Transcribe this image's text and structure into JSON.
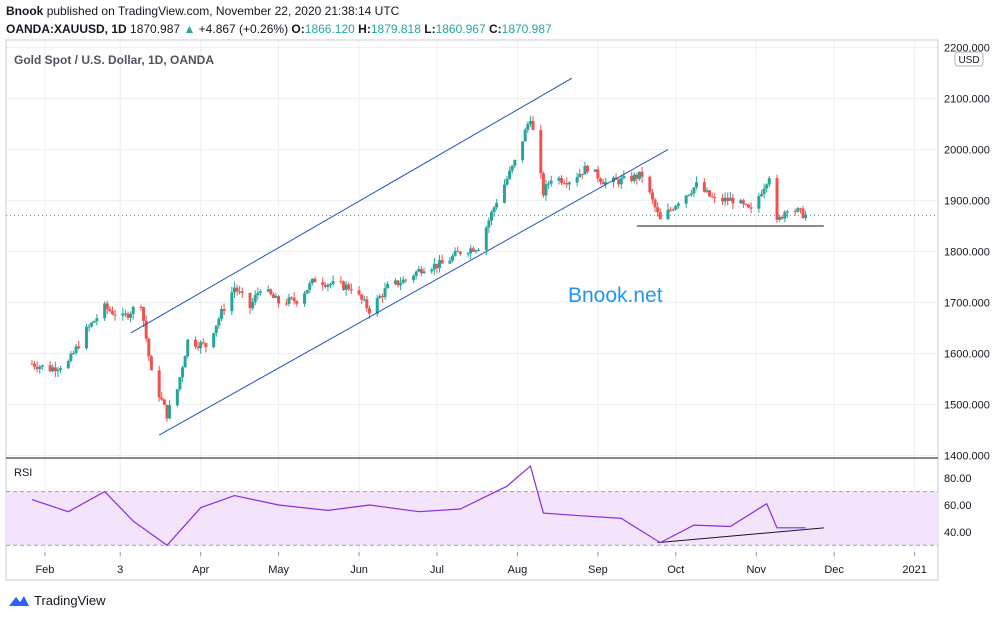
{
  "header": {
    "author": "Bnook",
    "published_text": "published on TradingView.com, November 22, 2020 21:38:14 UTC",
    "symbol": "OANDA:XAUUSD, 1D",
    "last": "1870.987",
    "change_arrow": "▲",
    "change": "+4.867 (+0.26%)",
    "o_label": "O:",
    "o_value": "1866.120",
    "h_label": "H:",
    "h_value": "1879.818",
    "l_label": "L:",
    "l_value": "1860.967",
    "c_label": "C:",
    "c_value": "1870.987"
  },
  "colors": {
    "up": "#26a69a",
    "down": "#ef5350",
    "trend": "#1e53c8",
    "rsi_line": "#8a2be2",
    "rsi_band": "#f3e3fb",
    "grid": "#eceff3",
    "watermark": "#2196f3"
  },
  "watermark": "Bnook.net",
  "footer": {
    "brand": "TradingView",
    "icon": "tradingview-logo-icon"
  },
  "chart_data": [
    {
      "type": "candlestick",
      "title": "Gold Spot / U.S. Dollar, 1D, OANDA",
      "currency_badge": "USD",
      "y_ticks": [
        "1400.000",
        "1500.000",
        "1600.000",
        "1700.000",
        "1800.000",
        "1900.000",
        "2000.000",
        "2100.000",
        "2200.000"
      ],
      "ylim": [
        1395,
        2215
      ],
      "x_ticks": [
        "Feb",
        "3",
        "Apr",
        "May",
        "Jun",
        "Jul",
        "Aug",
        "Sep",
        "Oct",
        "Nov",
        "Dec",
        "2021"
      ],
      "date_range": [
        "2020-01-27",
        "2020-11-20"
      ],
      "close_series": [
        [
          "2020-01-27",
          1580
        ],
        [
          "2020-02-03",
          1570
        ],
        [
          "2020-02-10",
          1582
        ],
        [
          "2020-02-17",
          1645
        ],
        [
          "2020-02-24",
          1690
        ],
        [
          "2020-03-02",
          1670
        ],
        [
          "2020-03-09",
          1700
        ],
        [
          "2020-03-13",
          1560
        ],
        [
          "2020-03-19",
          1480
        ],
        [
          "2020-03-23",
          1530
        ],
        [
          "2020-03-27",
          1625
        ],
        [
          "2020-04-03",
          1615
        ],
        [
          "2020-04-09",
          1680
        ],
        [
          "2020-04-14",
          1730
        ],
        [
          "2020-04-20",
          1690
        ],
        [
          "2020-04-24",
          1730
        ],
        [
          "2020-05-01",
          1700
        ],
        [
          "2020-05-08",
          1705
        ],
        [
          "2020-05-15",
          1745
        ],
        [
          "2020-05-22",
          1735
        ],
        [
          "2020-05-29",
          1730
        ],
        [
          "2020-06-05",
          1685
        ],
        [
          "2020-06-12",
          1730
        ],
        [
          "2020-06-19",
          1745
        ],
        [
          "2020-06-26",
          1770
        ],
        [
          "2020-07-03",
          1775
        ],
        [
          "2020-07-10",
          1800
        ],
        [
          "2020-07-17",
          1810
        ],
        [
          "2020-07-24",
          1900
        ],
        [
          "2020-07-31",
          1975
        ],
        [
          "2020-08-06",
          2065
        ],
        [
          "2020-08-11",
          1915
        ],
        [
          "2020-08-14",
          1945
        ],
        [
          "2020-08-21",
          1940
        ],
        [
          "2020-08-28",
          1965
        ],
        [
          "2020-09-04",
          1935
        ],
        [
          "2020-09-11",
          1940
        ],
        [
          "2020-09-18",
          1950
        ],
        [
          "2020-09-25",
          1860
        ],
        [
          "2020-10-02",
          1900
        ],
        [
          "2020-10-09",
          1930
        ],
        [
          "2020-10-16",
          1900
        ],
        [
          "2020-10-23",
          1902
        ],
        [
          "2020-10-30",
          1878
        ],
        [
          "2020-11-06",
          1951
        ],
        [
          "2020-11-09",
          1855
        ],
        [
          "2020-11-13",
          1888
        ],
        [
          "2020-11-20",
          1871
        ]
      ],
      "annotations": [
        {
          "type": "channel_upper",
          "from": [
            "2020-03-05",
            1640
          ],
          "to": [
            "2020-08-22",
            2140
          ]
        },
        {
          "type": "channel_lower",
          "from": [
            "2020-03-16",
            1440
          ],
          "to": [
            "2020-09-28",
            2000
          ]
        },
        {
          "type": "support",
          "from": [
            "2020-09-16",
            1850
          ],
          "to": [
            "2020-11-27",
            1850
          ]
        }
      ],
      "current_price_line": 1870.987
    },
    {
      "type": "line",
      "title": "RSI",
      "y_ticks": [
        "40.00",
        "60.00",
        "80.00"
      ],
      "band": [
        30,
        70
      ],
      "ylim": [
        25,
        95
      ],
      "x": [
        "2020-01-27",
        "2020-02-10",
        "2020-02-24",
        "2020-03-06",
        "2020-03-19",
        "2020-04-01",
        "2020-04-14",
        "2020-05-01",
        "2020-05-20",
        "2020-06-05",
        "2020-06-24",
        "2020-07-10",
        "2020-07-28",
        "2020-08-06",
        "2020-08-11",
        "2020-08-25",
        "2020-09-10",
        "2020-09-25",
        "2020-10-08",
        "2020-10-22",
        "2020-11-05",
        "2020-11-09",
        "2020-11-20"
      ],
      "values": [
        64,
        55,
        70,
        48,
        30,
        58,
        67,
        60,
        56,
        60,
        55,
        57,
        74,
        89,
        54,
        52,
        50,
        32,
        45,
        44,
        61,
        43,
        43
      ],
      "annotations": [
        {
          "type": "trendline",
          "from": [
            "2020-09-24",
            32
          ],
          "to": [
            "2020-11-27",
            43
          ]
        }
      ]
    }
  ]
}
